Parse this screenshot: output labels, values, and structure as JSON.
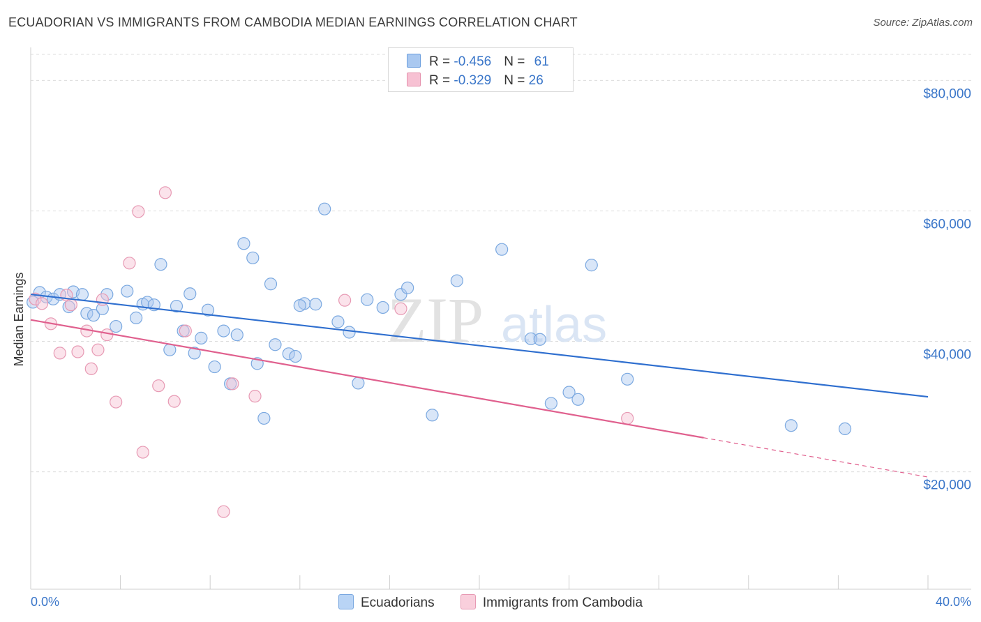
{
  "title": "ECUADORIAN VS IMMIGRANTS FROM CAMBODIA MEDIAN EARNINGS CORRELATION CHART",
  "source": "Source: ZipAtlas.com",
  "watermark": {
    "zip": "ZIP",
    "atlas": "atlas"
  },
  "legend": {
    "rows": [
      {
        "r_label": "R = ",
        "r_value": "-0.456",
        "n_label": "N = ",
        "n_value": "61",
        "color": "#a9c8f0",
        "border": "#6b9ede"
      },
      {
        "r_label": "R = ",
        "r_value": "-0.329",
        "n_label": "N = ",
        "n_value": "26",
        "color": "#f7c1d3",
        "border": "#e590ac"
      }
    ]
  },
  "bottom_legend": [
    {
      "label": "Ecuadorians",
      "color": "#b9d4f5",
      "border": "#7aa8e0"
    },
    {
      "label": "Immigrants from Cambodia",
      "color": "#f9cfdc",
      "border": "#e79ab4"
    }
  ],
  "chart_data": {
    "type": "scatter",
    "title": "ECUADORIAN VS IMMIGRANTS FROM CAMBODIA MEDIAN EARNINGS CORRELATION CHART",
    "xlabel": "",
    "ylabel": "Median Earnings",
    "xlim": [
      0,
      40
    ],
    "ylim": [
      2000,
      84000
    ],
    "x_tick_labels": {
      "left": "0.0%",
      "right": "40.0%"
    },
    "y_ticks": [
      20000,
      40000,
      60000,
      80000
    ],
    "y_tick_labels": [
      "$20,000",
      "$40,000",
      "$60,000",
      "$80,000"
    ],
    "series": [
      {
        "name": "Ecuadorians",
        "color": "#7aa8e0",
        "fill": "rgba(170,200,240,0.45)",
        "line_color": "#2f6fcf",
        "trend": {
          "x": [
            0,
            40
          ],
          "y": [
            47200,
            31500
          ],
          "dashed_from": null
        },
        "points": [
          [
            0.1,
            46000
          ],
          [
            0.4,
            47500
          ],
          [
            0.7,
            46800
          ],
          [
            1.0,
            46500
          ],
          [
            1.3,
            47200
          ],
          [
            1.7,
            45300
          ],
          [
            1.9,
            47600
          ],
          [
            2.3,
            47200
          ],
          [
            2.5,
            44300
          ],
          [
            2.8,
            44000
          ],
          [
            3.2,
            45000
          ],
          [
            3.4,
            47200
          ],
          [
            3.8,
            42300
          ],
          [
            4.3,
            47700
          ],
          [
            4.7,
            43600
          ],
          [
            5.0,
            45700
          ],
          [
            5.2,
            46000
          ],
          [
            5.5,
            45600
          ],
          [
            5.8,
            51800
          ],
          [
            6.2,
            38700
          ],
          [
            6.5,
            45400
          ],
          [
            6.8,
            41600
          ],
          [
            7.1,
            47300
          ],
          [
            7.3,
            38200
          ],
          [
            7.6,
            40500
          ],
          [
            7.9,
            44800
          ],
          [
            8.2,
            36100
          ],
          [
            8.6,
            41600
          ],
          [
            8.9,
            33500
          ],
          [
            9.2,
            41000
          ],
          [
            9.5,
            55000
          ],
          [
            9.9,
            52800
          ],
          [
            10.1,
            36600
          ],
          [
            10.4,
            28200
          ],
          [
            10.7,
            48800
          ],
          [
            10.9,
            39500
          ],
          [
            11.5,
            38100
          ],
          [
            11.8,
            37700
          ],
          [
            12.2,
            45800
          ],
          [
            12.7,
            45700
          ],
          [
            13.1,
            60300
          ],
          [
            13.7,
            43000
          ],
          [
            14.2,
            41400
          ],
          [
            14.6,
            33600
          ],
          [
            15.0,
            46400
          ],
          [
            15.7,
            45200
          ],
          [
            16.5,
            47200
          ],
          [
            16.8,
            48200
          ],
          [
            17.9,
            28700
          ],
          [
            19.0,
            49300
          ],
          [
            21.0,
            54100
          ],
          [
            22.3,
            40400
          ],
          [
            22.7,
            40300
          ],
          [
            23.2,
            30500
          ],
          [
            24.0,
            32200
          ],
          [
            24.4,
            31100
          ],
          [
            25.0,
            51700
          ],
          [
            26.6,
            34200
          ],
          [
            33.9,
            27100
          ],
          [
            36.3,
            26600
          ],
          [
            12.0,
            45500
          ]
        ]
      },
      {
        "name": "Immigrants from Cambodia",
        "color": "#e79ab4",
        "fill": "rgba(247,193,211,0.45)",
        "line_color": "#e0608e",
        "trend": {
          "x": [
            0,
            40
          ],
          "y": [
            43300,
            19200
          ],
          "dashed_from": 30
        },
        "points": [
          [
            0.2,
            46500
          ],
          [
            0.5,
            45800
          ],
          [
            0.9,
            42700
          ],
          [
            1.3,
            38200
          ],
          [
            1.6,
            47100
          ],
          [
            1.8,
            45600
          ],
          [
            2.1,
            38400
          ],
          [
            2.5,
            41600
          ],
          [
            2.7,
            35800
          ],
          [
            3.0,
            38700
          ],
          [
            3.4,
            41000
          ],
          [
            3.8,
            30700
          ],
          [
            4.4,
            52000
          ],
          [
            4.8,
            59900
          ],
          [
            5.0,
            23000
          ],
          [
            5.7,
            33200
          ],
          [
            6.0,
            62800
          ],
          [
            6.4,
            30800
          ],
          [
            6.9,
            41600
          ],
          [
            8.6,
            13900
          ],
          [
            9.0,
            33500
          ],
          [
            10.0,
            31600
          ],
          [
            14.0,
            46300
          ],
          [
            16.5,
            45000
          ],
          [
            26.6,
            28200
          ],
          [
            3.2,
            46400
          ]
        ]
      }
    ]
  }
}
